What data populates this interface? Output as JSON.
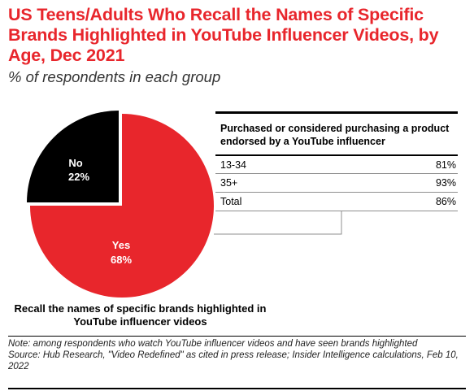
{
  "title": "US Teens/Adults Who Recall the Names of Specific Brands Highlighted in YouTube Influencer Videos, by Age, Dec 2021",
  "subtitle": "% of respondents in each group",
  "colors": {
    "title_red": "#e8262c",
    "yes": "#e8262c",
    "no": "#000000"
  },
  "chart_data": [
    {
      "type": "pie",
      "title": "Recall the names of specific brands highlighted in YouTube influencer videos",
      "slices": [
        {
          "label": "Yes",
          "value": 68,
          "value_label": "68%",
          "color": "#e8262c"
        },
        {
          "label": "No",
          "value": 22,
          "value_label": "22%",
          "color": "#000000",
          "exploded": true
        }
      ]
    },
    {
      "type": "table",
      "title": "Purchased or considered purchasing a product endorsed by a YouTube influencer",
      "rows": [
        {
          "label": "13-34",
          "value": "81%"
        },
        {
          "label": "35+",
          "value": "93%"
        },
        {
          "label": "Total",
          "value": "86%"
        }
      ]
    }
  ],
  "footer": {
    "note": "Note: among respondents who watch YouTube influencer videos and have seen brands highlighted",
    "source": "Source: Hub Research, \"Video Redefined\" as cited in press release; Insider Intelligence calculations, Feb 10, 2022"
  }
}
